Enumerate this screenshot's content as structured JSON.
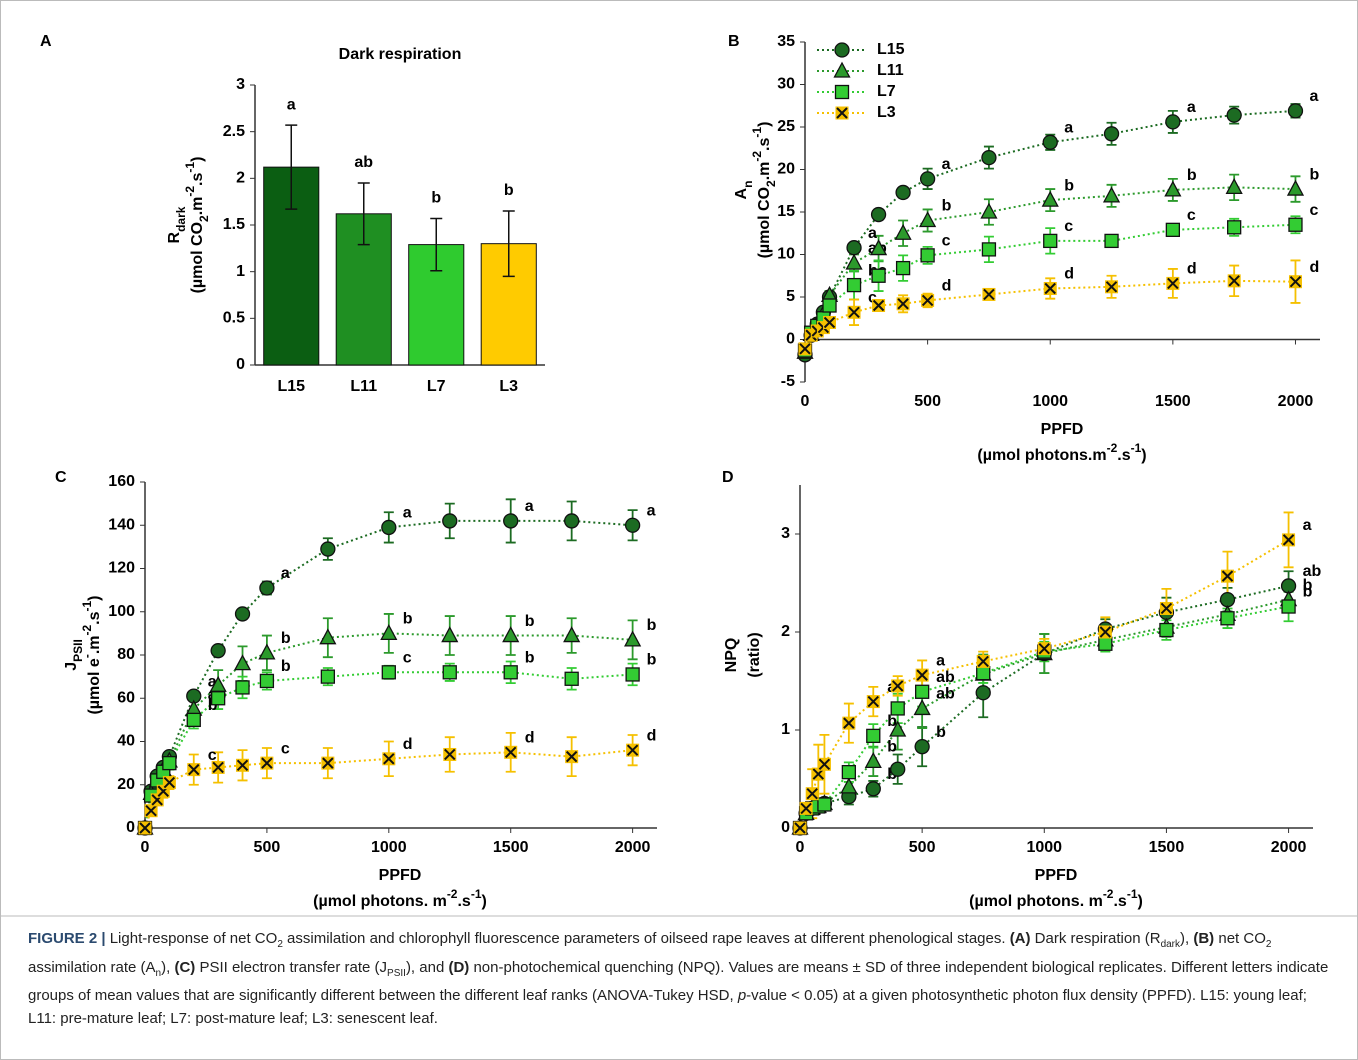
{
  "chart_data": [
    {
      "type": "bar",
      "panel": "A",
      "title": "Dark respiration",
      "ylabel": [
        [
          "R",
          "dark"
        ],
        [
          "(µmol CO",
          "2",
          ".m",
          "-2",
          ".s",
          "-1",
          ")"
        ]
      ],
      "categories": [
        "L15",
        "L11",
        "L7",
        "L3"
      ],
      "values": [
        2.12,
        1.62,
        1.29,
        1.3
      ],
      "errors": [
        0.45,
        0.33,
        0.28,
        0.35
      ],
      "letters": [
        "a",
        "ab",
        "b",
        "b"
      ],
      "colors": [
        "#0b5e12",
        "#1f8f22",
        "#2fcb2f",
        "#ffcb00"
      ],
      "ylim": [
        0,
        3
      ],
      "yticks": [
        0,
        0.5,
        1,
        1.5,
        2,
        2.5,
        3
      ]
    },
    {
      "type": "line",
      "panel": "B",
      "legend": "upper left",
      "ylabel": [
        [
          "A",
          "n"
        ],
        [
          "(µmol CO",
          "2",
          ".m",
          "-2",
          ".s",
          "-1",
          ")"
        ]
      ],
      "xlabel": [
        [
          "PPFD"
        ],
        [
          "(µmol photons.m",
          "-2",
          ".s",
          "-1",
          ")"
        ]
      ],
      "x": [
        0,
        25,
        50,
        75,
        100,
        200,
        300,
        400,
        500,
        750,
        1000,
        1250,
        1500,
        1750,
        2000
      ],
      "xlim": [
        0,
        2100
      ],
      "xticks": [
        0,
        500,
        1000,
        1500,
        2000
      ],
      "ylim": [
        -5,
        35
      ],
      "yticks": [
        -5,
        0,
        5,
        10,
        15,
        20,
        25,
        30,
        35
      ],
      "series": [
        {
          "name": "L15",
          "color": "#1c6b22",
          "marker": "circle",
          "values": [
            -1.8,
            0.5,
            1.8,
            3.2,
            5.0,
            10.8,
            14.7,
            17.3,
            18.9,
            21.4,
            23.2,
            24.2,
            25.6,
            26.4,
            26.9
          ],
          "errors": [
            0.3,
            0.3,
            0.3,
            0.4,
            0.5,
            0.6,
            0.6,
            0.6,
            1.2,
            1.3,
            0.9,
            1.3,
            1.3,
            1.0,
            0.8
          ],
          "letters": [
            null,
            null,
            null,
            null,
            null,
            "a",
            null,
            null,
            "a",
            null,
            "a",
            null,
            "a",
            null,
            "a"
          ]
        },
        {
          "name": "L11",
          "color": "#2c9a2c",
          "marker": "triangle",
          "values": [
            -1.5,
            0.6,
            1.8,
            3.0,
            5.2,
            9.0,
            10.7,
            12.5,
            14.0,
            15.0,
            16.4,
            16.9,
            17.6,
            17.9,
            17.7
          ],
          "errors": [
            0.3,
            0.3,
            0.3,
            0.4,
            0.5,
            1.0,
            1.5,
            1.5,
            1.3,
            1.5,
            1.3,
            1.3,
            1.3,
            1.5,
            1.5
          ],
          "letters": [
            null,
            null,
            null,
            null,
            null,
            "ab",
            null,
            null,
            "b",
            null,
            "b",
            null,
            "b",
            null,
            "b"
          ]
        },
        {
          "name": "L7",
          "color": "#33cc33",
          "marker": "square",
          "values": [
            -1.3,
            0.8,
            1.6,
            2.5,
            4.0,
            6.4,
            7.5,
            8.4,
            9.9,
            10.6,
            11.6,
            11.6,
            12.9,
            13.2,
            13.5
          ],
          "errors": [
            0.3,
            0.3,
            0.3,
            0.4,
            0.5,
            1.7,
            1.8,
            1.5,
            1.0,
            1.5,
            1.5,
            0.6,
            0.6,
            1.0,
            1.0
          ],
          "letters": [
            null,
            null,
            null,
            null,
            null,
            "bc",
            null,
            null,
            "c",
            null,
            "c",
            null,
            "c",
            null,
            "c"
          ]
        },
        {
          "name": "L3",
          "color": "#f5c000",
          "marker": "x",
          "values": [
            -1.1,
            0.5,
            1.0,
            1.4,
            2.0,
            3.2,
            4.0,
            4.2,
            4.6,
            5.3,
            6.0,
            6.2,
            6.6,
            6.9,
            6.8
          ],
          "errors": [
            0.3,
            0.3,
            0.3,
            0.4,
            0.5,
            1.5,
            0.5,
            1.0,
            0.8,
            0.5,
            1.2,
            1.3,
            1.7,
            1.8,
            2.5
          ],
          "letters": [
            null,
            null,
            null,
            null,
            null,
            "c",
            null,
            null,
            "d",
            null,
            "d",
            null,
            "d",
            null,
            "d"
          ]
        }
      ]
    },
    {
      "type": "line",
      "panel": "C",
      "ylabel": [
        [
          "J",
          "PSII"
        ],
        [
          "(µmol e",
          "-",
          ".m",
          "-2",
          ".s",
          "-1",
          ")"
        ]
      ],
      "xlabel": [
        [
          "PPFD"
        ],
        [
          "(µmol photons. m",
          "-2",
          ".s",
          "-1",
          ")"
        ]
      ],
      "x": [
        0,
        25,
        50,
        75,
        100,
        200,
        300,
        400,
        500,
        750,
        1000,
        1250,
        1500,
        1750,
        2000
      ],
      "xlim": [
        0,
        2100
      ],
      "xticks": [
        0,
        500,
        1000,
        1500,
        2000
      ],
      "ylim": [
        0,
        160
      ],
      "yticks": [
        0,
        20,
        40,
        60,
        80,
        100,
        120,
        140,
        160
      ],
      "series": [
        {
          "name": "L15",
          "color": "#1c6b22",
          "marker": "circle",
          "values": [
            0,
            17,
            24,
            28,
            33,
            61,
            82,
            99,
            111,
            129,
            139,
            142,
            142,
            142,
            140
          ],
          "errors": [
            0,
            2,
            2,
            2,
            2,
            2,
            2,
            2,
            3,
            5,
            7,
            8,
            10,
            9,
            7
          ],
          "letters": [
            null,
            null,
            null,
            null,
            null,
            "a",
            null,
            null,
            "a",
            null,
            "a",
            null,
            "a",
            null,
            "a"
          ]
        },
        {
          "name": "L11",
          "color": "#2c9a2c",
          "marker": "triangle",
          "values": [
            0,
            16,
            22,
            27,
            31,
            55,
            66,
            76,
            81,
            88,
            90,
            89,
            89,
            89,
            87
          ],
          "errors": [
            0,
            2,
            2,
            3,
            3,
            5,
            7,
            8,
            8,
            9,
            9,
            9,
            9,
            8,
            9
          ],
          "letters": [
            null,
            null,
            null,
            null,
            null,
            "ab",
            null,
            null,
            "b",
            null,
            "b",
            null,
            "b",
            null,
            "b"
          ]
        },
        {
          "name": "L7",
          "color": "#33cc33",
          "marker": "square",
          "values": [
            0,
            15,
            22,
            26,
            30,
            50,
            60,
            65,
            68,
            70,
            72,
            72,
            72,
            69,
            71
          ],
          "errors": [
            0,
            2,
            2,
            3,
            3,
            4,
            5,
            5,
            4,
            4,
            3,
            4,
            5,
            5,
            5
          ],
          "letters": [
            null,
            null,
            null,
            null,
            null,
            "b",
            null,
            null,
            "b",
            null,
            "c",
            null,
            "b",
            null,
            "b"
          ]
        },
        {
          "name": "L3",
          "color": "#f5c000",
          "marker": "x",
          "values": [
            0,
            8,
            13,
            17,
            21,
            27,
            28,
            29,
            30,
            30,
            32,
            34,
            35,
            33,
            36
          ],
          "errors": [
            0,
            2,
            2,
            3,
            3,
            7,
            7,
            7,
            7,
            7,
            8,
            8,
            9,
            9,
            7
          ],
          "letters": [
            null,
            null,
            null,
            null,
            null,
            "c",
            null,
            null,
            "c",
            null,
            "d",
            null,
            "d",
            null,
            "d"
          ]
        }
      ]
    },
    {
      "type": "line",
      "panel": "D",
      "ylabel": [
        [
          "NPQ"
        ],
        [
          "(ratio)"
        ]
      ],
      "xlabel": [
        [
          "PPFD"
        ],
        [
          "(µmol photons. m",
          "-2",
          ".s",
          "-1",
          ")"
        ]
      ],
      "x": [
        0,
        25,
        50,
        75,
        100,
        200,
        300,
        400,
        500,
        750,
        1000,
        1250,
        1500,
        1750,
        2000
      ],
      "xlim": [
        0,
        2100
      ],
      "xticks": [
        0,
        500,
        1000,
        1500,
        2000
      ],
      "ylim": [
        0,
        3.5
      ],
      "yticks": [
        0,
        1,
        2,
        3
      ],
      "series": [
        {
          "name": "L15",
          "color": "#1c6b22",
          "marker": "circle",
          "values": [
            0,
            0.15,
            0.2,
            0.22,
            0.25,
            0.32,
            0.4,
            0.6,
            0.83,
            1.38,
            1.78,
            2.03,
            2.2,
            2.33,
            2.47
          ],
          "errors": [
            0,
            0.03,
            0.03,
            0.03,
            0.05,
            0.08,
            0.08,
            0.15,
            0.2,
            0.25,
            0.2,
            0.1,
            0.15,
            0.12,
            0.15
          ],
          "letters": [
            null,
            null,
            null,
            null,
            null,
            null,
            "b",
            null,
            "b",
            null,
            null,
            null,
            null,
            null,
            "ab"
          ]
        },
        {
          "name": "L11",
          "color": "#2c9a2c",
          "marker": "triangle",
          "values": [
            0,
            0.15,
            0.2,
            0.22,
            0.25,
            0.42,
            0.68,
            1.0,
            1.22,
            1.57,
            1.78,
            1.92,
            2.05,
            2.18,
            2.33
          ],
          "errors": [
            0,
            0.03,
            0.05,
            0.05,
            0.05,
            0.1,
            0.15,
            0.2,
            0.2,
            0.2,
            0.2,
            0.08,
            0.1,
            0.1,
            0.1
          ],
          "letters": [
            null,
            null,
            null,
            null,
            null,
            null,
            "b",
            null,
            "ab",
            null,
            null,
            null,
            null,
            null,
            "b"
          ]
        },
        {
          "name": "L7",
          "color": "#33cc33",
          "marker": "square",
          "values": [
            0,
            0.15,
            0.2,
            0.22,
            0.24,
            0.57,
            0.94,
            1.22,
            1.39,
            1.58,
            1.8,
            1.88,
            2.02,
            2.14,
            2.26
          ],
          "errors": [
            0,
            0.03,
            0.05,
            0.05,
            0.05,
            0.1,
            0.12,
            0.15,
            0.15,
            0.1,
            0.1,
            0.08,
            0.1,
            0.1,
            0.15
          ],
          "letters": [
            null,
            null,
            null,
            null,
            null,
            null,
            "b",
            null,
            "ab",
            null,
            null,
            null,
            null,
            null,
            "b"
          ]
        },
        {
          "name": "L3",
          "color": "#f5c000",
          "marker": "x",
          "values": [
            0,
            0.2,
            0.35,
            0.55,
            0.65,
            1.07,
            1.29,
            1.45,
            1.56,
            1.7,
            1.83,
            2.0,
            2.24,
            2.57,
            2.94
          ],
          "errors": [
            0,
            0.05,
            0.25,
            0.3,
            0.3,
            0.2,
            0.15,
            0.1,
            0.15,
            0.1,
            0.1,
            0.15,
            0.2,
            0.25,
            0.28
          ],
          "letters": [
            null,
            null,
            null,
            null,
            null,
            null,
            "a",
            null,
            "a",
            null,
            null,
            null,
            null,
            null,
            "a"
          ]
        }
      ]
    }
  ],
  "caption": [
    "FIGURE 2 |",
    " Light-response of net CO",
    "2",
    " assimilation and chlorophyll fluorescence parameters of oilseed rape leaves at different phenological stages. ",
    "(A)",
    " Dark respiration (R",
    "dark",
    "), ",
    "(B)",
    " net CO",
    "2",
    " assimilation rate (A",
    "n",
    "), ",
    "(C)",
    " PSII electron transfer rate (J",
    "PSII",
    "), and ",
    "(D)",
    " non-photochemical quenching (NPQ). Values are means ± SD of three independent biological replicates. Different letters indicate groups of mean values that are significantly different between the different leaf ranks (ANOVA-Tukey HSD, ",
    "p",
    "-value < 0.05) at a given photosynthetic photon flux density (PPFD). L15: young leaf; L11: pre-mature leaf; L7: post-mature leaf; L3: senescent leaf."
  ]
}
